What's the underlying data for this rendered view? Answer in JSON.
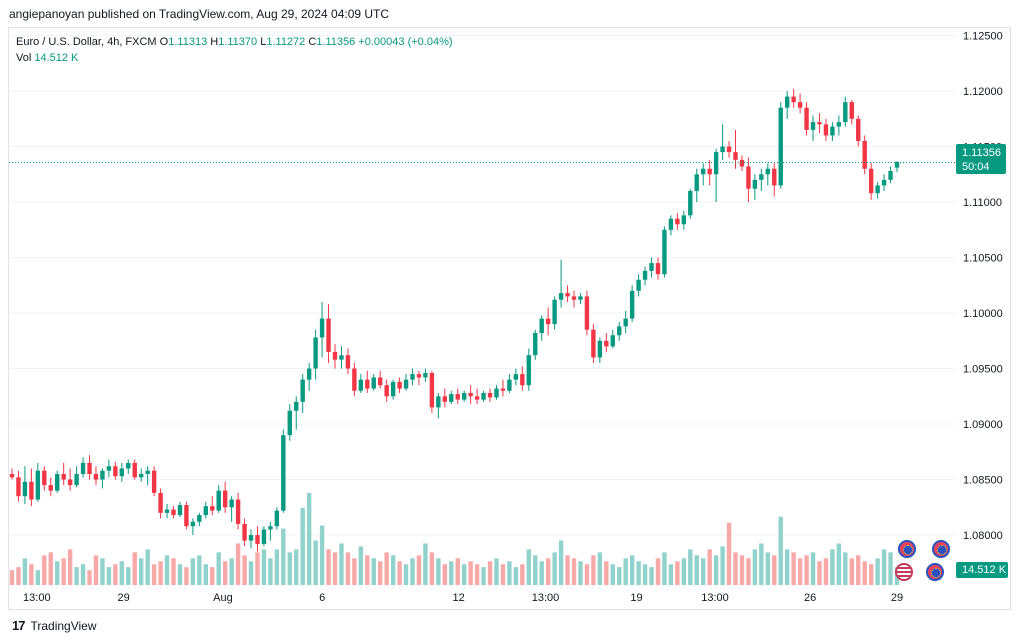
{
  "header": {
    "published": "angiepanoyan published on TradingView.com, Aug 29, 2024 04:09 UTC"
  },
  "legend": {
    "symbol": "Euro / U.S. Dollar, 4h, FXCM",
    "o_label": "O",
    "o_val": "1.11313",
    "h_label": "H",
    "h_val": "1.11370",
    "l_label": "L",
    "l_val": "1.11272",
    "c_label": "C",
    "c_val": "1.11356",
    "change": "+0.00043 (+0.04%)",
    "vol_label": "Vol",
    "vol_val": "14.512 K"
  },
  "price_axis": [
    "1.12500",
    "1.12000",
    "1.11500",
    "1.11000",
    "1.10500",
    "1.10000",
    "1.09500",
    "1.09000",
    "1.08500",
    "1.08000"
  ],
  "time_axis": [
    "13:00",
    "29",
    "Aug",
    "6",
    "12",
    "13:00",
    "19",
    "13:00",
    "26",
    "29"
  ],
  "current_price": {
    "value": "1.11356",
    "countdown": "50:04"
  },
  "volume_badge": "14.512 K",
  "colors": {
    "up": "#089981",
    "down": "#f23645",
    "vol_up": "#92d2cc",
    "vol_down": "#f7a9a7"
  },
  "footer": {
    "brand": "TradingView",
    "logo_icon": "tv-logo-icon"
  },
  "event_icons": [
    "eu-flag-icon",
    "eu-flag-icon",
    "us-flag-icon",
    "eu-flag-icon"
  ],
  "chart_data": {
    "type": "candlestick",
    "ylim": [
      1.0755,
      1.1255
    ],
    "candles": [
      [
        1.0855,
        1.086,
        1.085,
        1.0852
      ],
      [
        1.0852,
        1.0858,
        1.083,
        1.0835
      ],
      [
        1.0835,
        1.0862,
        1.0828,
        1.0848
      ],
      [
        1.0848,
        1.086,
        1.0826,
        1.0832
      ],
      [
        1.0832,
        1.0865,
        1.083,
        1.0858
      ],
      [
        1.0858,
        1.0862,
        1.084,
        1.0845
      ],
      [
        1.0845,
        1.0852,
        1.0835,
        1.084
      ],
      [
        1.084,
        1.0858,
        1.0838,
        1.0855
      ],
      [
        1.0855,
        1.0865,
        1.0845,
        1.085
      ],
      [
        1.085,
        1.086,
        1.084,
        1.0845
      ],
      [
        1.0845,
        1.0862,
        1.0843,
        1.0855
      ],
      [
        1.0855,
        1.087,
        1.0852,
        1.0865
      ],
      [
        1.0865,
        1.0872,
        1.085,
        1.0855
      ],
      [
        1.0855,
        1.0862,
        1.0845,
        1.085
      ],
      [
        1.085,
        1.086,
        1.0842,
        1.0858
      ],
      [
        1.0858,
        1.0868,
        1.0852,
        1.0862
      ],
      [
        1.0862,
        1.0866,
        1.085,
        1.0853
      ],
      [
        1.0853,
        1.0865,
        1.0848,
        1.086
      ],
      [
        1.086,
        1.0868,
        1.0855,
        1.0865
      ],
      [
        1.0865,
        1.0868,
        1.085,
        1.0852
      ],
      [
        1.0852,
        1.086,
        1.0848,
        1.0855
      ],
      [
        1.0855,
        1.0862,
        1.0845,
        1.0858
      ],
      [
        1.0858,
        1.0862,
        1.0835,
        1.0838
      ],
      [
        1.0838,
        1.0842,
        1.0815,
        1.082
      ],
      [
        1.082,
        1.0828,
        1.0815,
        1.0823
      ],
      [
        1.0823,
        1.0826,
        1.0815,
        1.0818
      ],
      [
        1.0818,
        1.083,
        1.0816,
        1.0827
      ],
      [
        1.0827,
        1.083,
        1.0805,
        1.0808
      ],
      [
        1.0808,
        1.0815,
        1.08,
        1.0812
      ],
      [
        1.0812,
        1.082,
        1.0808,
        1.0818
      ],
      [
        1.0818,
        1.083,
        1.0815,
        1.0826
      ],
      [
        1.0826,
        1.0835,
        1.0818,
        1.0822
      ],
      [
        1.0822,
        1.0845,
        1.082,
        1.084
      ],
      [
        1.084,
        1.0848,
        1.082,
        1.0825
      ],
      [
        1.0825,
        1.0835,
        1.0812,
        1.0832
      ],
      [
        1.0832,
        1.0838,
        1.0805,
        1.081
      ],
      [
        1.081,
        1.0815,
        1.079,
        1.0795
      ],
      [
        1.0795,
        1.0805,
        1.0788,
        1.08
      ],
      [
        1.08,
        1.0808,
        1.0785,
        1.0792
      ],
      [
        1.0792,
        1.0808,
        1.079,
        1.0805
      ],
      [
        1.0805,
        1.0812,
        1.0795,
        1.0808
      ],
      [
        1.0808,
        1.0825,
        1.0805,
        1.0822
      ],
      [
        1.0822,
        1.0895,
        1.082,
        1.089
      ],
      [
        1.089,
        1.0918,
        1.0885,
        1.0912
      ],
      [
        1.0912,
        1.0925,
        1.0895,
        1.092
      ],
      [
        1.092,
        1.0945,
        1.091,
        1.094
      ],
      [
        1.094,
        1.0955,
        1.093,
        1.095
      ],
      [
        1.095,
        1.0985,
        1.094,
        1.0978
      ],
      [
        1.0978,
        1.101,
        1.096,
        1.0995
      ],
      [
        1.0995,
        1.1008,
        1.0955,
        1.0965
      ],
      [
        1.0965,
        1.0972,
        1.095,
        1.0958
      ],
      [
        1.0958,
        1.097,
        1.095,
        1.0962
      ],
      [
        1.0962,
        1.0968,
        1.0945,
        1.095
      ],
      [
        1.095,
        1.0955,
        1.0925,
        1.093
      ],
      [
        1.093,
        1.0945,
        1.0928,
        1.094
      ],
      [
        1.094,
        1.0948,
        1.0928,
        1.0932
      ],
      [
        1.0932,
        1.0945,
        1.093,
        1.0942
      ],
      [
        1.0942,
        1.0948,
        1.0932,
        1.0935
      ],
      [
        1.0935,
        1.094,
        1.092,
        1.0925
      ],
      [
        1.0925,
        1.094,
        1.0922,
        1.0938
      ],
      [
        1.0938,
        1.0942,
        1.0928,
        1.0932
      ],
      [
        1.0932,
        1.0945,
        1.093,
        1.094
      ],
      [
        1.094,
        1.095,
        1.0935,
        1.0945
      ],
      [
        1.0945,
        1.0948,
        1.0935,
        1.0942
      ],
      [
        1.0942,
        1.095,
        1.0938,
        1.0946
      ],
      [
        1.0946,
        1.0948,
        1.091,
        1.0915
      ],
      [
        1.0915,
        1.0928,
        1.0905,
        1.0925
      ],
      [
        1.0925,
        1.0932,
        1.0915,
        1.092
      ],
      [
        1.092,
        1.093,
        1.0918,
        1.0927
      ],
      [
        1.0927,
        1.0932,
        1.0918,
        1.0922
      ],
      [
        1.0922,
        1.093,
        1.092,
        1.0928
      ],
      [
        1.0928,
        1.0935,
        1.0918,
        1.0925
      ],
      [
        1.0925,
        1.0932,
        1.0918,
        1.0922
      ],
      [
        1.0922,
        1.093,
        1.092,
        1.0928
      ],
      [
        1.0928,
        1.0932,
        1.092,
        1.0924
      ],
      [
        1.0924,
        1.0935,
        1.0922,
        1.0932
      ],
      [
        1.0932,
        1.094,
        1.0925,
        1.093
      ],
      [
        1.093,
        1.0945,
        1.0928,
        1.094
      ],
      [
        1.094,
        1.095,
        1.0935,
        1.0945
      ],
      [
        1.0945,
        1.0952,
        1.093,
        1.0935
      ],
      [
        1.0935,
        1.0968,
        1.093,
        1.0962
      ],
      [
        1.0962,
        1.0985,
        1.0958,
        1.0982
      ],
      [
        1.0982,
        1.0998,
        1.0975,
        1.0995
      ],
      [
        1.0995,
        1.1005,
        1.098,
        1.099
      ],
      [
        1.099,
        1.1015,
        1.0985,
        1.1012
      ],
      [
        1.1012,
        1.1048,
        1.1005,
        1.1018
      ],
      [
        1.1018,
        1.1025,
        1.101,
        1.1015
      ],
      [
        1.1015,
        1.102,
        1.1005,
        1.1012
      ],
      [
        1.1012,
        1.1018,
        1.1008,
        1.1015
      ],
      [
        1.1015,
        1.102,
        1.098,
        1.0985
      ],
      [
        1.0985,
        1.099,
        1.0955,
        1.096
      ],
      [
        1.096,
        1.0978,
        1.0955,
        1.0975
      ],
      [
        1.0975,
        1.0982,
        1.0965,
        1.097
      ],
      [
        1.097,
        1.0985,
        1.0968,
        1.098
      ],
      [
        1.098,
        1.0992,
        1.0975,
        1.0988
      ],
      [
        1.0988,
        1.1002,
        1.0982,
        1.0995
      ],
      [
        1.0995,
        1.1025,
        1.0992,
        1.102
      ],
      [
        1.102,
        1.1035,
        1.1015,
        1.103
      ],
      [
        1.103,
        1.1042,
        1.1025,
        1.1038
      ],
      [
        1.1038,
        1.105,
        1.1032,
        1.1045
      ],
      [
        1.1045,
        1.105,
        1.103,
        1.1035
      ],
      [
        1.1035,
        1.1078,
        1.1032,
        1.1075
      ],
      [
        1.1075,
        1.1088,
        1.107,
        1.1085
      ],
      [
        1.1085,
        1.109,
        1.1075,
        1.108
      ],
      [
        1.108,
        1.1092,
        1.1075,
        1.1088
      ],
      [
        1.1088,
        1.1112,
        1.1085,
        1.111
      ],
      [
        1.111,
        1.113,
        1.11,
        1.1125
      ],
      [
        1.1125,
        1.1135,
        1.1115,
        1.113
      ],
      [
        1.113,
        1.1138,
        1.1115,
        1.1125
      ],
      [
        1.1125,
        1.1148,
        1.11,
        1.1145
      ],
      [
        1.1145,
        1.117,
        1.1138,
        1.115
      ],
      [
        1.115,
        1.1155,
        1.114,
        1.1145
      ],
      [
        1.1145,
        1.1165,
        1.113,
        1.1138
      ],
      [
        1.1138,
        1.1142,
        1.1128,
        1.1132
      ],
      [
        1.1132,
        1.114,
        1.11,
        1.1112
      ],
      [
        1.1112,
        1.1125,
        1.1102,
        1.112
      ],
      [
        1.112,
        1.113,
        1.111,
        1.1125
      ],
      [
        1.1125,
        1.1135,
        1.1115,
        1.113
      ],
      [
        1.113,
        1.1135,
        1.1105,
        1.1115
      ],
      [
        1.1115,
        1.119,
        1.1112,
        1.1185
      ],
      [
        1.1185,
        1.12,
        1.1175,
        1.1195
      ],
      [
        1.1195,
        1.1202,
        1.1185,
        1.119
      ],
      [
        1.119,
        1.1198,
        1.118,
        1.1185
      ],
      [
        1.1185,
        1.119,
        1.116,
        1.1165
      ],
      [
        1.1165,
        1.1178,
        1.1155,
        1.1172
      ],
      [
        1.1172,
        1.118,
        1.1162,
        1.117
      ],
      [
        1.117,
        1.1175,
        1.1155,
        1.116
      ],
      [
        1.116,
        1.1172,
        1.1155,
        1.1168
      ],
      [
        1.1168,
        1.1178,
        1.116,
        1.1172
      ],
      [
        1.1172,
        1.1195,
        1.1168,
        1.119
      ],
      [
        1.119,
        1.1192,
        1.117,
        1.1175
      ],
      [
        1.1175,
        1.1178,
        1.115,
        1.1155
      ],
      [
        1.1155,
        1.116,
        1.1125,
        1.113
      ],
      [
        1.113,
        1.1135,
        1.1102,
        1.1108
      ],
      [
        1.1108,
        1.1118,
        1.1103,
        1.1115
      ],
      [
        1.1115,
        1.1125,
        1.111,
        1.112
      ],
      [
        1.112,
        1.1132,
        1.1117,
        1.1128
      ],
      [
        1.1131,
        1.1137,
        1.1127,
        1.1136
      ]
    ],
    "volume": [
      0.25,
      0.3,
      0.45,
      0.35,
      0.25,
      0.5,
      0.55,
      0.4,
      0.45,
      0.6,
      0.3,
      0.35,
      0.25,
      0.5,
      0.45,
      0.3,
      0.35,
      0.4,
      0.3,
      0.55,
      0.45,
      0.6,
      0.35,
      0.4,
      0.5,
      0.45,
      0.35,
      0.3,
      0.45,
      0.5,
      0.35,
      0.3,
      0.55,
      0.4,
      0.45,
      0.7,
      0.5,
      0.4,
      0.55,
      0.6,
      0.45,
      0.6,
      0.95,
      0.55,
      0.6,
      1.3,
      1.55,
      0.75,
      1.0,
      0.6,
      0.55,
      0.7,
      0.55,
      0.45,
      0.65,
      0.5,
      0.45,
      0.4,
      0.55,
      0.5,
      0.4,
      0.35,
      0.45,
      0.5,
      0.7,
      0.55,
      0.45,
      0.35,
      0.4,
      0.45,
      0.35,
      0.4,
      0.35,
      0.3,
      0.4,
      0.45,
      0.35,
      0.4,
      0.3,
      0.35,
      0.6,
      0.5,
      0.4,
      0.45,
      0.55,
      0.75,
      0.5,
      0.45,
      0.4,
      0.35,
      0.5,
      0.55,
      0.4,
      0.35,
      0.3,
      0.45,
      0.5,
      0.4,
      0.35,
      0.3,
      0.45,
      0.55,
      0.35,
      0.4,
      0.45,
      0.6,
      0.5,
      0.45,
      0.6,
      0.5,
      0.65,
      1.05,
      0.55,
      0.5,
      0.45,
      0.6,
      0.7,
      0.55,
      0.5,
      1.15,
      0.6,
      0.55,
      0.45,
      0.5,
      0.55,
      0.4,
      0.45,
      0.6,
      0.7,
      0.55,
      0.45,
      0.5,
      0.4,
      0.35,
      0.45,
      0.6,
      0.55
    ]
  }
}
